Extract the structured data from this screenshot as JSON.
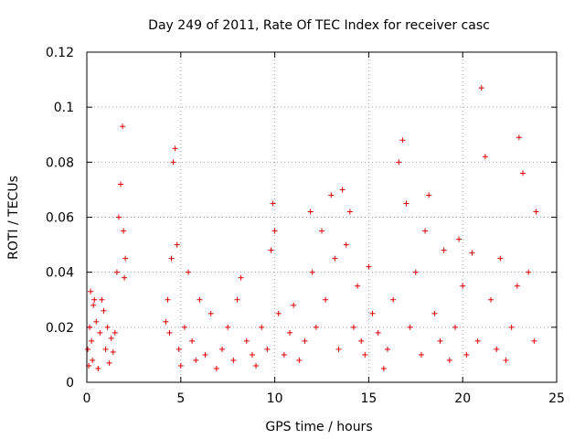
{
  "chart_data": {
    "type": "scatter",
    "title": "Day 249 of 2011, Rate Of TEC Index for receiver casc",
    "xlabel": "GPS time / hours",
    "ylabel": "ROTI / TECUs",
    "xlim": [
      0,
      25
    ],
    "ylim": [
      0,
      0.12
    ],
    "xticks": [
      0,
      5,
      10,
      15,
      20,
      25
    ],
    "xtick_labels": [
      "0",
      "5",
      "10",
      "15",
      "20",
      "25"
    ],
    "yticks": [
      0,
      0.02,
      0.04,
      0.06,
      0.08,
      0.1,
      0.12
    ],
    "ytick_labels": [
      "0",
      "0.02",
      "0.04",
      "0.06",
      "0.08",
      "0.1",
      "0.12"
    ],
    "grid": true,
    "marker": "plus",
    "color": "#e00000",
    "series": [
      {
        "name": "ROTI",
        "x": [
          0.05,
          0.1,
          0.15,
          0.2,
          0.25,
          0.3,
          0.35,
          0.4,
          0.5,
          0.6,
          0.7,
          0.8,
          0.9,
          1.0,
          1.1,
          1.2,
          1.3,
          1.4,
          1.5,
          1.6,
          1.7,
          1.8,
          1.9,
          1.95,
          2.0,
          2.05,
          4.2,
          4.3,
          4.4,
          4.5,
          4.6,
          4.7,
          4.8,
          4.9,
          5.0,
          5.2,
          5.4,
          5.6,
          5.8,
          6.0,
          6.3,
          6.6,
          6.9,
          7.2,
          7.5,
          7.8,
          8.0,
          8.2,
          8.5,
          8.8,
          9.0,
          9.3,
          9.6,
          9.8,
          9.9,
          10.0,
          10.2,
          10.5,
          10.8,
          11.0,
          11.3,
          11.6,
          11.9,
          12.0,
          12.2,
          12.5,
          12.7,
          13.0,
          13.2,
          13.4,
          13.6,
          13.8,
          14.0,
          14.2,
          14.4,
          14.6,
          14.8,
          15.0,
          15.2,
          15.5,
          15.8,
          16.0,
          16.3,
          16.6,
          16.8,
          17.0,
          17.2,
          17.5,
          17.8,
          18.0,
          18.2,
          18.5,
          18.8,
          19.0,
          19.3,
          19.6,
          19.8,
          20.0,
          20.2,
          20.5,
          20.8,
          21.0,
          21.2,
          21.5,
          21.8,
          22.0,
          22.3,
          22.6,
          22.9,
          23.0,
          23.2,
          23.5,
          23.8,
          23.9
        ],
        "y": [
          0.012,
          0.006,
          0.02,
          0.033,
          0.015,
          0.008,
          0.028,
          0.03,
          0.022,
          0.005,
          0.018,
          0.03,
          0.026,
          0.012,
          0.02,
          0.007,
          0.016,
          0.011,
          0.018,
          0.04,
          0.06,
          0.072,
          0.093,
          0.055,
          0.038,
          0.045,
          0.022,
          0.03,
          0.018,
          0.045,
          0.08,
          0.085,
          0.05,
          0.012,
          0.006,
          0.02,
          0.04,
          0.015,
          0.008,
          0.03,
          0.01,
          0.025,
          0.005,
          0.012,
          0.02,
          0.008,
          0.03,
          0.038,
          0.015,
          0.01,
          0.006,
          0.02,
          0.012,
          0.048,
          0.065,
          0.055,
          0.025,
          0.01,
          0.018,
          0.028,
          0.008,
          0.015,
          0.062,
          0.04,
          0.02,
          0.055,
          0.03,
          0.068,
          0.045,
          0.012,
          0.07,
          0.05,
          0.062,
          0.02,
          0.035,
          0.015,
          0.01,
          0.042,
          0.025,
          0.018,
          0.005,
          0.012,
          0.03,
          0.08,
          0.088,
          0.065,
          0.02,
          0.04,
          0.01,
          0.055,
          0.068,
          0.025,
          0.015,
          0.048,
          0.008,
          0.02,
          0.052,
          0.035,
          0.01,
          0.047,
          0.015,
          0.107,
          0.082,
          0.03,
          0.012,
          0.045,
          0.008,
          0.02,
          0.035,
          0.089,
          0.076,
          0.04,
          0.015,
          0.062
        ]
      }
    ]
  }
}
